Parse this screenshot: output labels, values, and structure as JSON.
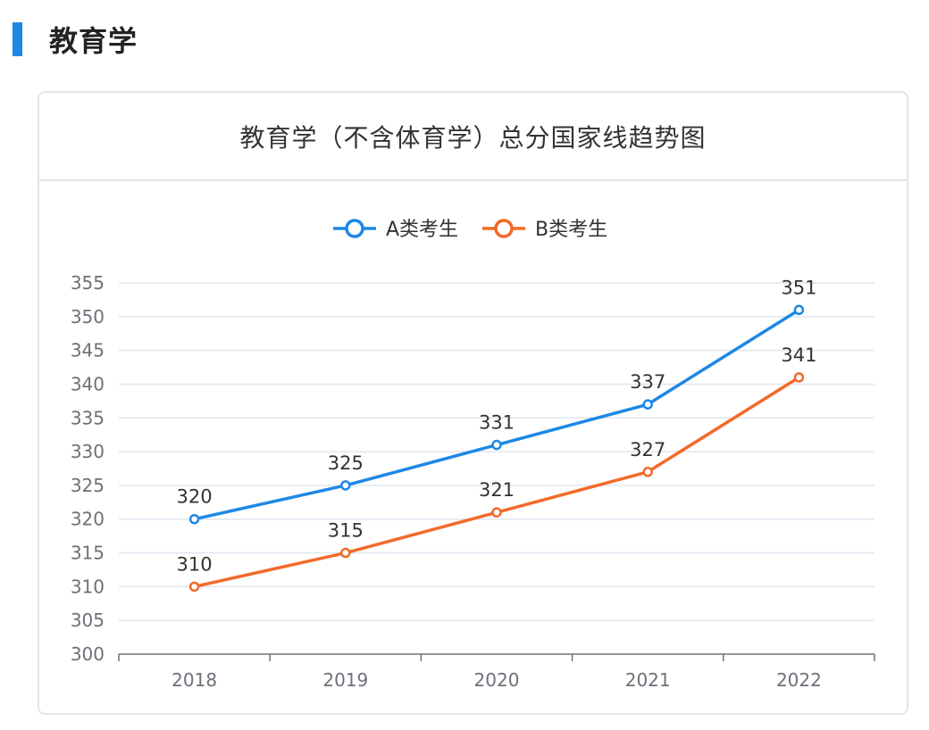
{
  "section": {
    "title": "教育学",
    "accent_color": "#1e88e5"
  },
  "chart_data": {
    "type": "line",
    "title": "教育学（不含体育学）总分国家线趋势图",
    "categories": [
      "2018",
      "2019",
      "2020",
      "2021",
      "2022"
    ],
    "series": [
      {
        "name": "A类考生",
        "color": "#1e88e5",
        "values": [
          320,
          325,
          331,
          337,
          351
        ]
      },
      {
        "name": "B类考生",
        "color": "#f26a2a",
        "values": [
          310,
          315,
          321,
          327,
          341
        ]
      }
    ],
    "ylim": [
      300,
      355
    ],
    "yticks": [
      300,
      305,
      310,
      315,
      320,
      325,
      330,
      335,
      340,
      345,
      350,
      355
    ],
    "grid": true,
    "legend": "top-center",
    "data_labels": true
  }
}
